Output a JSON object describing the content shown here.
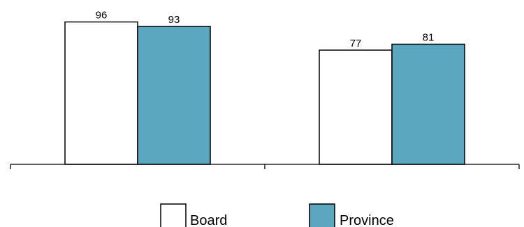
{
  "chart_data": {
    "type": "bar",
    "categories": [
      "",
      ""
    ],
    "series": [
      {
        "name": "Board",
        "values": [
          96,
          77
        ],
        "color": "#ffffff"
      },
      {
        "name": "Province",
        "values": [
          93,
          81
        ],
        "color": "#5aa7bf"
      }
    ],
    "ylim": [
      0,
      100
    ],
    "grid": false,
    "legend_position": "bottom",
    "show_data_labels": true
  }
}
